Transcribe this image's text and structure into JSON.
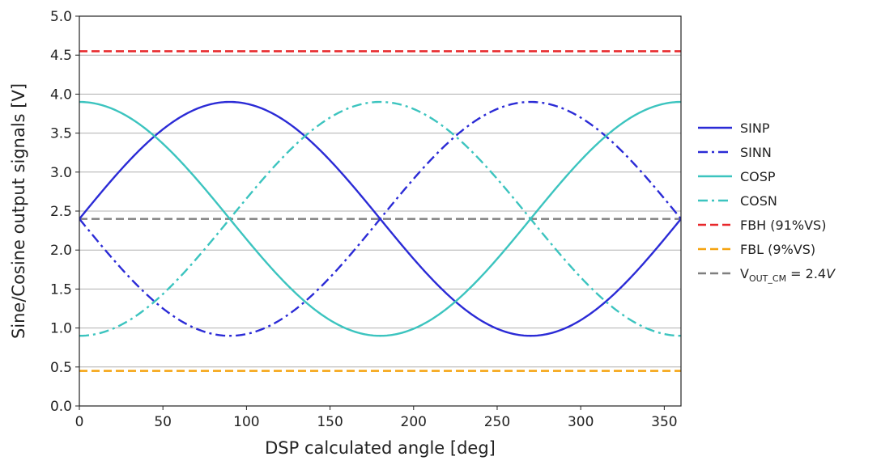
{
  "chart_data": {
    "type": "line",
    "title": "",
    "xlabel": "DSP calculated angle [deg]",
    "ylabel": "Sine/Cosine output signals [V]",
    "xlim": [
      0,
      360
    ],
    "ylim": [
      0.0,
      5.0
    ],
    "x_ticks": [
      "0",
      "50",
      "100",
      "150",
      "200",
      "250",
      "300",
      "350"
    ],
    "x_tick_values": [
      0,
      50,
      100,
      150,
      200,
      250,
      300,
      350
    ],
    "y_ticks": [
      "0.0",
      "0.5",
      "1.0",
      "1.5",
      "2.0",
      "2.5",
      "3.0",
      "3.5",
      "4.0",
      "4.5",
      "5.0"
    ],
    "y_tick_values": [
      0.0,
      0.5,
      1.0,
      1.5,
      2.0,
      2.5,
      3.0,
      3.5,
      4.0,
      4.5,
      5.0
    ],
    "grid": "horizontal",
    "legend_position": "right",
    "series": [
      {
        "name": "SINP",
        "function": "sin",
        "offset": 2.4,
        "amplitude": 1.5,
        "sign": 1,
        "color": "#2b2bd6",
        "style": "solid"
      },
      {
        "name": "SINN",
        "function": "sin",
        "offset": 2.4,
        "amplitude": 1.5,
        "sign": -1,
        "color": "#2b2bd6",
        "style": "dashdot"
      },
      {
        "name": "COSP",
        "function": "cos",
        "offset": 2.4,
        "amplitude": 1.5,
        "sign": 1,
        "color": "#3cc4bf",
        "style": "solid"
      },
      {
        "name": "COSN",
        "function": "cos",
        "offset": 2.4,
        "amplitude": 1.5,
        "sign": -1,
        "color": "#3cc4bf",
        "style": "dashdot"
      },
      {
        "name": "FBH (91%VS)",
        "function": "const",
        "value": 4.55,
        "color": "#e8282b",
        "style": "dashed"
      },
      {
        "name": "FBL (9%VS)",
        "function": "const",
        "value": 0.45,
        "color": "#f5a30f",
        "style": "dashed"
      },
      {
        "name": "V_OUT_CM = 2.4V",
        "function": "const",
        "value": 2.4,
        "color": "#7f7f7f",
        "style": "dashed",
        "label_parts": {
          "base": "V",
          "sub": "OUT_CM",
          "rest": " = 2.4",
          "italic": "V"
        }
      }
    ]
  }
}
